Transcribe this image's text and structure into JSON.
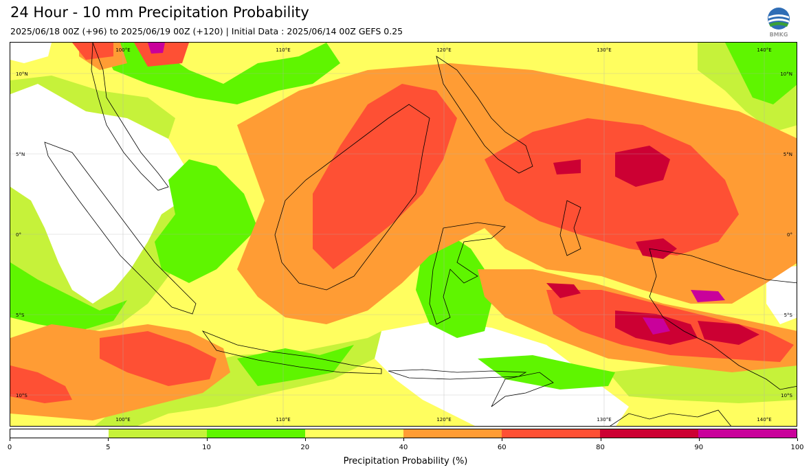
{
  "header": {
    "title": "24 Hour - 10 mm Precipitation Probability",
    "subtitle": "2025/06/18 00Z (+96) to 2025/06/19 00Z (+120) | Initial Data : 2025/06/14 00Z GEFS 0.25",
    "logo_text": "BMKG"
  },
  "map": {
    "lon_labels": [
      "100°E",
      "110°E",
      "120°E",
      "130°E",
      "140°E"
    ],
    "lat_labels": [
      "10°N",
      "5°N",
      "0°",
      "5°S",
      "10°S"
    ],
    "palette": {
      "c0_5": "#ffffff",
      "c5_10": "#c6f23a",
      "c10_20": "#5ff500",
      "c20_40": "#fffe5f",
      "c40_60": "#ff9c34",
      "c60_80": "#fe5034",
      "c80_90": "#cc0033",
      "c90_100": "#c9019b"
    }
  },
  "colorbar": {
    "ticks": [
      "0",
      "5",
      "10",
      "20",
      "40",
      "60",
      "80",
      "90",
      "100"
    ],
    "colors": [
      "#ffffff",
      "#c6f23a",
      "#5ff500",
      "#fffe5f",
      "#ff9c34",
      "#fe5034",
      "#cc0033",
      "#c9019b"
    ],
    "label": "Precipitation Probability (%)"
  }
}
